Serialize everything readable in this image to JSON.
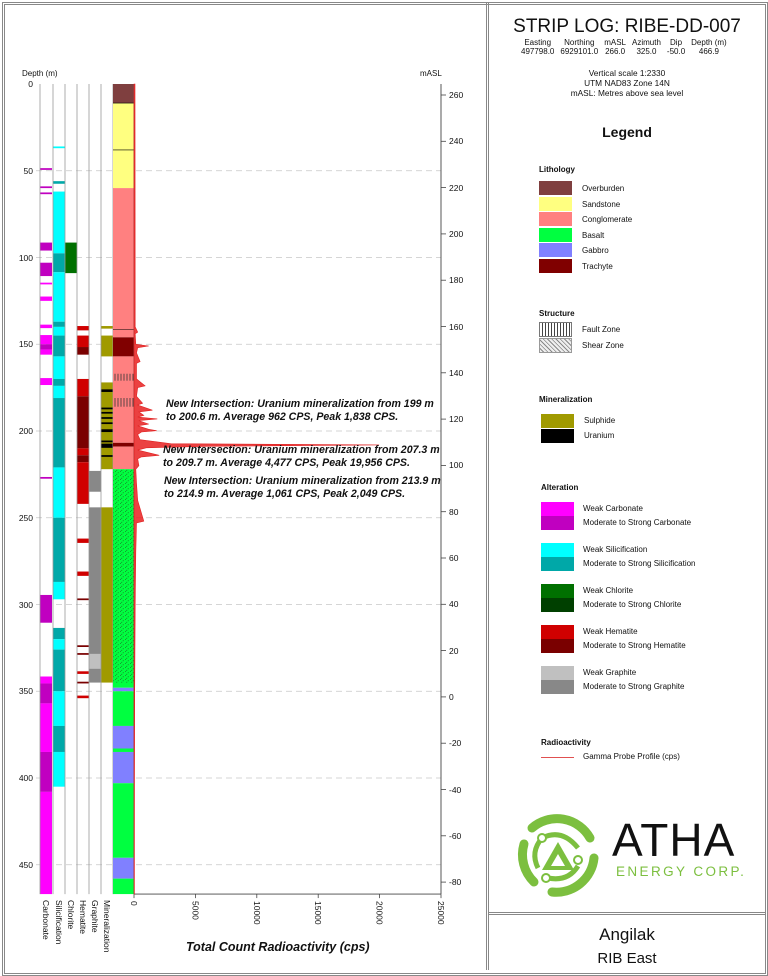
{
  "header": {
    "title": "STRIP LOG: RIBE-DD-007",
    "coords_headers": [
      "Easting",
      "Northing",
      "mASL",
      "Azimuth",
      "Dip",
      "Depth (m)"
    ],
    "coords_values": [
      "497798.0",
      "6929101.0",
      "266.0",
      "325.0",
      "-50.0",
      "466.9"
    ],
    "meta": [
      "Vertical scale 1:2330",
      "UTM NAD83 Zone 14N",
      "mASL: Metres above sea level"
    ]
  },
  "legend": {
    "title": "Legend",
    "lithology": {
      "heading": "Lithology",
      "items": [
        {
          "label": "Overburden",
          "color": "#7f3f3f"
        },
        {
          "label": "Sandstone",
          "color": "#ffff80"
        },
        {
          "label": "Conglomerate",
          "color": "#ff8080"
        },
        {
          "label": "Basalt",
          "color": "#00ff40"
        },
        {
          "label": "Gabbro",
          "color": "#8080ff"
        },
        {
          "label": "Trachyte",
          "color": "#800000"
        }
      ]
    },
    "structure": {
      "heading": "Structure",
      "items": [
        {
          "label": "Fault Zone",
          "pattern": "vertical-lines"
        },
        {
          "label": "Shear Zone",
          "pattern": "diagonal-hatch"
        }
      ]
    },
    "mineralization": {
      "heading": "Mineralization",
      "items": [
        {
          "label": "Sulphide",
          "color": "#a09a00"
        },
        {
          "label": "Uranium",
          "color": "#000000"
        }
      ]
    },
    "alteration": {
      "heading": "Alteration",
      "groups": [
        {
          "weak": "Weak Carbonate",
          "strong": "Moderate to Strong Carbonate",
          "weak_color": "#ff00ff",
          "strong_color": "#c000c0"
        },
        {
          "weak": "Weak Silicification",
          "strong": "Moderate to Strong Silicification",
          "weak_color": "#00ffff",
          "strong_color": "#00a8a8"
        },
        {
          "weak": "Weak Chlorite",
          "strong": "Moderate to Strong Chlorite",
          "weak_color": "#007000",
          "strong_color": "#004000"
        },
        {
          "weak": "Weak Hematite",
          "strong": "Moderate to Strong Hematite",
          "weak_color": "#d00000",
          "strong_color": "#7a0000"
        },
        {
          "weak": "Weak Graphite",
          "strong": "Moderate to Strong Graphite",
          "weak_color": "#c0c0c0",
          "strong_color": "#888888"
        }
      ]
    },
    "radioactivity": {
      "heading": "Radioactivity",
      "label": "Gamma Probe Profile (cps)",
      "color": "#e05050"
    }
  },
  "logo": {
    "name": "ATHA",
    "sub": "ENERGY CORP.",
    "color": "#7cbf3f"
  },
  "footer": {
    "project": "Angilak",
    "area": "RIB East"
  },
  "chart_data": {
    "type": "strip_log",
    "depth_axis": {
      "label": "Depth (m)",
      "range": [
        0,
        466.9
      ],
      "ticks": [
        0,
        50,
        100,
        150,
        200,
        250,
        300,
        350,
        400,
        450
      ]
    },
    "masl_axis": {
      "label": "mASL",
      "ticks": [
        260,
        240,
        220,
        200,
        180,
        160,
        140,
        120,
        100,
        80,
        60,
        40,
        20,
        0,
        -20,
        -40,
        -60,
        -80
      ]
    },
    "x_axis": {
      "label": "Total Count Radioactivity (cps)",
      "range": [
        0,
        25000
      ],
      "ticks": [
        0,
        5000,
        10000,
        15000,
        20000,
        25000
      ]
    },
    "grid": "dashed horizontal every 50 m",
    "columns": [
      {
        "name": "Carbonate",
        "key": 0,
        "intervals": [
          [
            48.5,
            49.5,
            "strong"
          ],
          [
            59,
            60,
            "strong"
          ],
          [
            62.5,
            63.5,
            "strong"
          ],
          [
            91.4,
            96,
            "strong"
          ],
          [
            103,
            110.7,
            "strong"
          ],
          [
            114.5,
            115.5,
            "weak"
          ],
          [
            122.5,
            125,
            "weak"
          ],
          [
            138.7,
            140.7,
            "weak"
          ],
          [
            144.7,
            150,
            "weak"
          ],
          [
            150,
            153,
            "strong"
          ],
          [
            153,
            156,
            "weak"
          ],
          [
            169.5,
            173.5,
            "weak"
          ],
          [
            226.5,
            227.5,
            "strong"
          ],
          [
            294.5,
            310.5,
            "strong"
          ],
          [
            341.5,
            345.5,
            "weak"
          ],
          [
            345.5,
            357,
            "strong"
          ],
          [
            357,
            385,
            "weak"
          ],
          [
            385,
            408,
            "strong"
          ],
          [
            408,
            466.9,
            "weak"
          ]
        ]
      },
      {
        "name": "Silicification",
        "key": 1,
        "intervals": [
          [
            36,
            37,
            "weak"
          ],
          [
            56,
            57.5,
            "strong"
          ],
          [
            62,
            97.6,
            "weak"
          ],
          [
            97.6,
            108.5,
            "strong"
          ],
          [
            108.5,
            137,
            "weak"
          ],
          [
            137,
            140,
            "strong"
          ],
          [
            140,
            145,
            "weak"
          ],
          [
            145,
            157,
            "strong"
          ],
          [
            157,
            170,
            "weak"
          ],
          [
            170,
            174,
            "strong"
          ],
          [
            174,
            181,
            "weak"
          ],
          [
            181,
            221,
            "strong"
          ],
          [
            221,
            250,
            "weak"
          ],
          [
            250,
            287,
            "strong"
          ],
          [
            287,
            297,
            "weak"
          ],
          [
            313.5,
            320,
            "strong"
          ],
          [
            320,
            326,
            "weak"
          ],
          [
            326,
            350,
            "strong"
          ],
          [
            350,
            370,
            "weak"
          ],
          [
            370,
            385,
            "strong"
          ],
          [
            385,
            405,
            "weak"
          ]
        ]
      },
      {
        "name": "Chlorite",
        "key": 2,
        "intervals": [
          [
            91.4,
            109,
            "weak"
          ]
        ]
      },
      {
        "name": "Hematite",
        "key": 3,
        "intervals": [
          [
            139.5,
            142,
            "weak"
          ],
          [
            145,
            151.6,
            "weak"
          ],
          [
            151.6,
            156,
            "strong"
          ],
          [
            170,
            180,
            "weak"
          ],
          [
            180,
            210,
            "strong"
          ],
          [
            210,
            214,
            "weak"
          ],
          [
            214,
            218,
            "strong"
          ],
          [
            218,
            242,
            "weak"
          ],
          [
            262,
            264.5,
            "weak"
          ],
          [
            281,
            283.5,
            "weak"
          ],
          [
            296.5,
            297.5,
            "strong"
          ],
          [
            323.5,
            324.5,
            "strong"
          ],
          [
            328,
            329,
            "strong"
          ],
          [
            338.5,
            340,
            "weak"
          ],
          [
            344.5,
            345.5,
            "strong"
          ],
          [
            352.5,
            354,
            "weak"
          ]
        ]
      },
      {
        "name": "Graphite",
        "key": 4,
        "intervals": [
          [
            223,
            235,
            "strong"
          ],
          [
            244,
            328.5,
            "strong"
          ],
          [
            328.5,
            337,
            "weak"
          ],
          [
            337,
            345,
            "strong"
          ]
        ]
      },
      {
        "name": "Mineralization",
        "key": 5,
        "intervals": [
          [
            139.5,
            141,
            "sulphide"
          ],
          [
            145,
            157,
            "sulphide"
          ],
          [
            172,
            222,
            "sulphide"
          ],
          [
            176,
            177.5,
            "uranium"
          ],
          [
            186.5,
            187.5,
            "uranium"
          ],
          [
            189,
            190,
            "uranium"
          ],
          [
            192,
            193,
            "uranium"
          ],
          [
            195,
            196,
            "uranium"
          ],
          [
            199,
            200.6,
            "uranium"
          ],
          [
            205.5,
            206.5,
            "uranium"
          ],
          [
            207.3,
            209.7,
            "uranium"
          ],
          [
            213.9,
            214.9,
            "uranium"
          ],
          [
            244,
            345,
            "sulphide"
          ]
        ]
      }
    ],
    "lithology": [
      [
        0,
        11,
        "Overburden"
      ],
      [
        11,
        60,
        "Sandstone"
      ],
      [
        60,
        146,
        "Conglomerate"
      ],
      [
        146,
        157,
        "Trachyte"
      ],
      [
        157,
        206.8,
        "Conglomerate"
      ],
      [
        206.8,
        209,
        "Trachyte"
      ],
      [
        209,
        222,
        "Conglomerate"
      ],
      [
        222,
        348,
        "Basalt"
      ],
      [
        348,
        350,
        "Gabbro"
      ],
      [
        350,
        370,
        "Basalt"
      ],
      [
        370,
        383,
        "Gabbro"
      ],
      [
        383,
        385,
        "Basalt"
      ],
      [
        385,
        403,
        "Gabbro"
      ],
      [
        403,
        446,
        "Basalt"
      ],
      [
        446,
        458,
        "Gabbro"
      ],
      [
        458,
        466.9,
        "Basalt"
      ]
    ],
    "structure": [
      [
        167,
        171,
        "Fault Zone"
      ],
      [
        181,
        186,
        "Fault Zone"
      ],
      [
        222,
        345,
        "Shear Zone"
      ]
    ],
    "gamma_profile": [
      [
        0,
        80
      ],
      [
        140,
        100
      ],
      [
        143,
        300
      ],
      [
        144,
        100
      ],
      [
        150,
        150
      ],
      [
        151,
        1200
      ],
      [
        152,
        300
      ],
      [
        155,
        200
      ],
      [
        160,
        500
      ],
      [
        161,
        200
      ],
      [
        170,
        200
      ],
      [
        174,
        900
      ],
      [
        175,
        300
      ],
      [
        180,
        200
      ],
      [
        184,
        700
      ],
      [
        185,
        300
      ],
      [
        188,
        1500
      ],
      [
        189,
        400
      ],
      [
        191,
        800
      ],
      [
        192,
        300
      ],
      [
        193,
        1900
      ],
      [
        194,
        400
      ],
      [
        196,
        1200
      ],
      [
        197,
        300
      ],
      [
        199,
        1200
      ],
      [
        199.8,
        1838
      ],
      [
        200.6,
        600
      ],
      [
        202,
        300
      ],
      [
        205,
        500
      ],
      [
        207.3,
        3000
      ],
      [
        208,
        19956
      ],
      [
        208.8,
        6000
      ],
      [
        209.7,
        1000
      ],
      [
        211,
        300
      ],
      [
        214,
        2049
      ],
      [
        214.9,
        600
      ],
      [
        216,
        300
      ],
      [
        220,
        400
      ],
      [
        222,
        150
      ],
      [
        230,
        200
      ],
      [
        240,
        300
      ],
      [
        252,
        800
      ],
      [
        253,
        200
      ],
      [
        270,
        150
      ],
      [
        300,
        100
      ],
      [
        350,
        60
      ],
      [
        400,
        40
      ],
      [
        466.9,
        30
      ]
    ],
    "annotations": [
      {
        "lines": [
          "New Intersection: Uranium mineralization from 199 m",
          "to 200.6 m. Average 962 CPS, Peak 1,838 CPS."
        ]
      },
      {
        "lines": [
          "New Intersection: Uranium mineralization from 207.3 m",
          "to 209.7 m. Average 4,477 CPS, Peak 19,956 CPS."
        ]
      },
      {
        "lines": [
          "New Intersection: Uranium mineralization from 213.9 m",
          "to 214.9 m. Average 1,061 CPS, Peak 2,049 CPS."
        ]
      }
    ]
  }
}
